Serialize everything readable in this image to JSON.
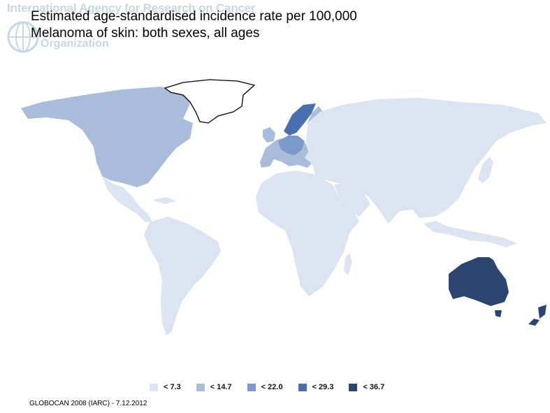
{
  "watermark": {
    "org_line": "International Agency for Research on Cancer",
    "org_line2": "Organization"
  },
  "header": {
    "title_line1": "Estimated age-standardised incidence rate per 100,000",
    "title_line2": "Melanoma of skin: both sexes, all ages"
  },
  "legend": {
    "items": [
      {
        "label": "< 7.3",
        "color": "#dde4f1"
      },
      {
        "label": "< 14.7",
        "color": "#a9bcd9"
      },
      {
        "label": "< 22.0",
        "color": "#7d99cb"
      },
      {
        "label": "< 29.3",
        "color": "#4a6fae"
      },
      {
        "label": "< 36.7",
        "color": "#2b4470"
      }
    ]
  },
  "regions_by_class": {
    "lt_7_3": "Central and South America, Africa, Asia, Eastern Europe",
    "lt_14_7": "North America, Western and Southern Europe",
    "lt_22_0": "Northern Europe",
    "lt_29_3": "Norway",
    "lt_36_7": "Australia and New Zealand",
    "no_data": "Greenland"
  },
  "footer": {
    "source": "GLOBOCAN 2008 (IARC) - 7.12.2012"
  }
}
